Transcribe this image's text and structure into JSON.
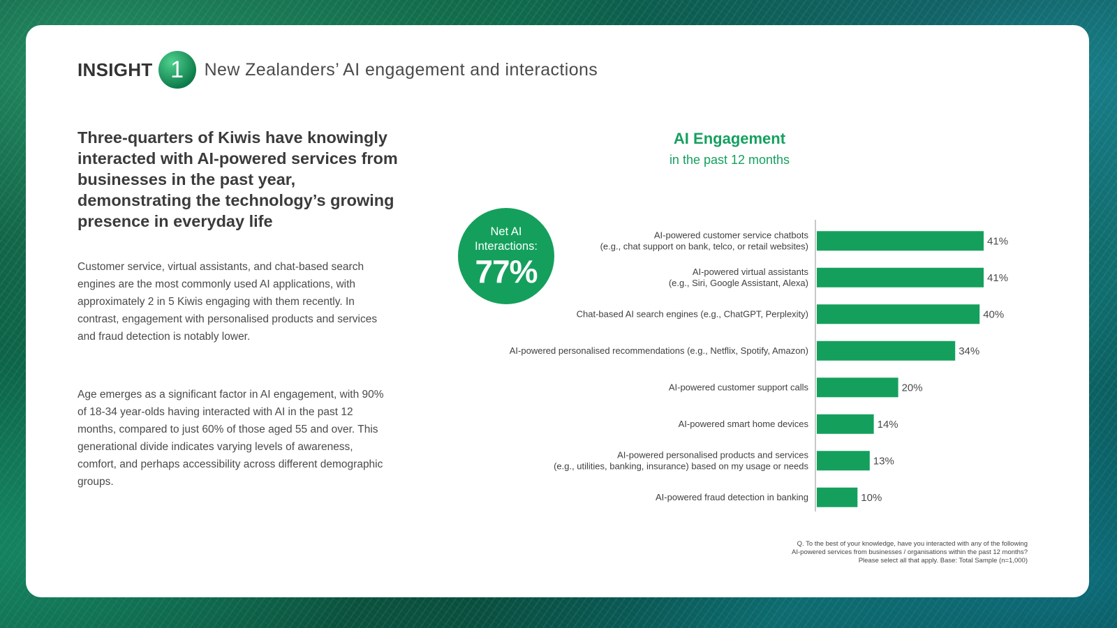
{
  "header": {
    "insight_word": "INSIGHT",
    "insight_number": "1",
    "title": "New Zealanders’ AI engagement and interactions"
  },
  "left": {
    "headline": "Three-quarters of Kiwis have knowingly interacted with AI-powered services from businesses in the past year, demonstrating the technology’s growing presence in everyday life",
    "paragraph1": "Customer service, virtual assistants, and chat-based search engines are the most commonly used AI applications, with approximately 2 in 5 Kiwis engaging with them recently. In contrast, engagement with personalised products and services and fraud detection is notably lower.",
    "paragraph2": "Age emerges as a significant factor in AI engagement, with 90% of 18-34 year-olds having interacted with AI in the past 12 months, compared to just 60% of those aged 55 and over. This generational divide indicates varying levels of awareness, comfort, and perhaps accessibility across different demographic groups."
  },
  "net": {
    "label": "Net AI\nInteractions:",
    "value": "77%"
  },
  "footnote": "Q. To the best of your knowledge, have you interacted with any of the following\nAI-powered services from businesses / organisations within the past 12 months?\nPlease select all that apply.  Base: Total Sample (n=1,000)",
  "colors": {
    "accent": "#14a05c",
    "bar": "#14a05c",
    "text": "#3b3b3b"
  },
  "chart_data": {
    "type": "bar",
    "orientation": "horizontal",
    "title": "AI Engagement",
    "subtitle": "in the past 12 months",
    "xlabel": "",
    "ylabel": "",
    "xlim": [
      0,
      100
    ],
    "unit": "%",
    "categories": [
      [
        "AI-powered customer service chatbots",
        "(e.g., chat support on bank, telco, or retail websites)"
      ],
      [
        "AI-powered virtual assistants",
        "(e.g., Siri, Google Assistant, Alexa)"
      ],
      [
        "Chat-based AI search engines (e.g., ChatGPT, Perplexity)"
      ],
      [
        "AI-powered personalised recommendations (e.g., Netflix, Spotify, Amazon)"
      ],
      [
        "AI-powered customer support calls"
      ],
      [
        "AI-powered smart home devices"
      ],
      [
        "AI-powered personalised products and services",
        "(e.g., utilities, banking, insurance) based on my usage or needs"
      ],
      [
        "AI-powered fraud detection in banking"
      ]
    ],
    "values": [
      41,
      41,
      40,
      34,
      20,
      14,
      13,
      10
    ],
    "value_labels": [
      "41%",
      "41%",
      "40%",
      "34%",
      "20%",
      "14%",
      "13%",
      "10%"
    ]
  }
}
